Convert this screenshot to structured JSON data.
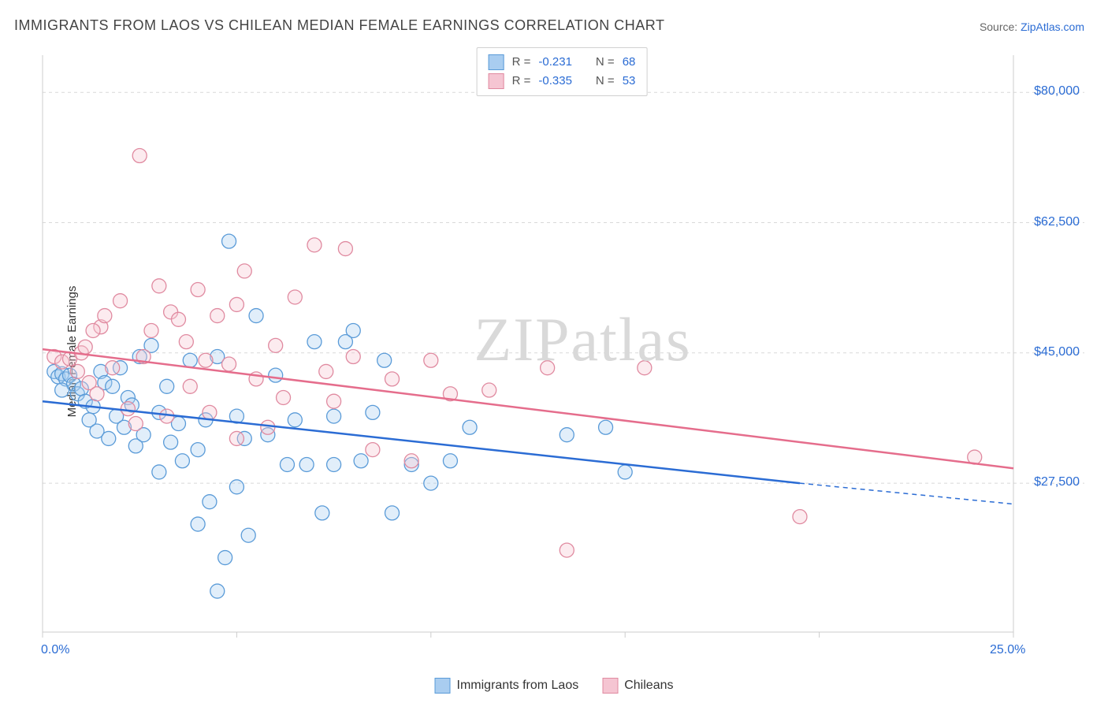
{
  "title": "IMMIGRANTS FROM LAOS VS CHILEAN MEDIAN FEMALE EARNINGS CORRELATION CHART",
  "source_label": "Source:",
  "source_name": "ZipAtlas.com",
  "y_axis_label": "Median Female Earnings",
  "watermark": {
    "zip": "ZIP",
    "atlas": "atlas"
  },
  "chart": {
    "type": "scatter",
    "xlim": [
      0,
      25
    ],
    "ylim": [
      7500,
      85000
    ],
    "x_ticks": [
      0,
      25
    ],
    "x_tick_labels": [
      "0.0%",
      "25.0%"
    ],
    "x_minor_ticks": [
      5,
      10,
      15,
      20
    ],
    "y_ticks": [
      27500,
      45000,
      62500,
      80000
    ],
    "y_tick_labels": [
      "$27,500",
      "$45,000",
      "$62,500",
      "$80,000"
    ],
    "y_grid": [
      27500,
      45000,
      62500,
      80000
    ],
    "grid_color": "#d8d8d8",
    "grid_dash": "4,4",
    "axis_color": "#cccccc",
    "background_color": "#ffffff",
    "marker_radius": 9,
    "marker_fill_opacity": 0.35,
    "marker_stroke_width": 1.3,
    "line_width": 2.5,
    "series": [
      {
        "name": "Immigrants from Laos",
        "color_stroke": "#5a9bd8",
        "color_fill": "#a9cdf0",
        "line_color": "#2b6cd4",
        "r_label": "R =",
        "r_value": "-0.231",
        "n_label": "N =",
        "n_value": "68",
        "regression": {
          "x1": 0,
          "y1": 38500,
          "x2": 19.5,
          "y2": 27500,
          "x2_ext": 25,
          "y2_ext": 24700
        },
        "points": [
          [
            0.3,
            42500
          ],
          [
            0.4,
            41800
          ],
          [
            0.5,
            42200
          ],
          [
            0.6,
            41500
          ],
          [
            0.7,
            42000
          ],
          [
            0.8,
            40800
          ],
          [
            0.5,
            40000
          ],
          [
            0.9,
            39500
          ],
          [
            1.0,
            40200
          ],
          [
            1.1,
            38500
          ],
          [
            1.3,
            37800
          ],
          [
            1.5,
            42500
          ],
          [
            1.2,
            36000
          ],
          [
            1.4,
            34500
          ],
          [
            1.6,
            41000
          ],
          [
            1.8,
            40500
          ],
          [
            2.0,
            43000
          ],
          [
            2.2,
            39000
          ],
          [
            1.7,
            33500
          ],
          [
            1.9,
            36500
          ],
          [
            2.1,
            35000
          ],
          [
            2.3,
            38000
          ],
          [
            2.5,
            44500
          ],
          [
            2.8,
            46000
          ],
          [
            2.4,
            32500
          ],
          [
            2.6,
            34000
          ],
          [
            3.0,
            37000
          ],
          [
            3.2,
            40500
          ],
          [
            3.5,
            35500
          ],
          [
            3.8,
            44000
          ],
          [
            3.0,
            29000
          ],
          [
            3.3,
            33000
          ],
          [
            3.6,
            30500
          ],
          [
            4.0,
            32000
          ],
          [
            4.2,
            36000
          ],
          [
            4.5,
            44500
          ],
          [
            4.0,
            22000
          ],
          [
            4.3,
            25000
          ],
          [
            4.8,
            60000
          ],
          [
            5.0,
            36500
          ],
          [
            5.2,
            33500
          ],
          [
            5.5,
            50000
          ],
          [
            4.5,
            13000
          ],
          [
            4.7,
            17500
          ],
          [
            5.8,
            34000
          ],
          [
            6.0,
            42000
          ],
          [
            6.3,
            30000
          ],
          [
            6.5,
            36000
          ],
          [
            5.0,
            27000
          ],
          [
            5.3,
            20500
          ],
          [
            7.0,
            46500
          ],
          [
            7.2,
            23500
          ],
          [
            7.5,
            36500
          ],
          [
            8.0,
            48000
          ],
          [
            7.5,
            30000
          ],
          [
            8.2,
            30500
          ],
          [
            8.5,
            37000
          ],
          [
            9.0,
            23500
          ],
          [
            9.5,
            30000
          ],
          [
            10.0,
            27500
          ],
          [
            10.5,
            30500
          ],
          [
            11.0,
            35000
          ],
          [
            13.5,
            34000
          ],
          [
            14.5,
            35000
          ],
          [
            15.0,
            29000
          ],
          [
            7.8,
            46500
          ],
          [
            8.8,
            44000
          ],
          [
            6.8,
            30000
          ]
        ]
      },
      {
        "name": "Chileans",
        "color_stroke": "#e08aa0",
        "color_fill": "#f5c5d2",
        "line_color": "#e56d8c",
        "r_label": "R =",
        "r_value": "-0.335",
        "n_label": "N =",
        "n_value": "53",
        "regression": {
          "x1": 0,
          "y1": 45500,
          "x2": 25,
          "y2": 29500
        },
        "points": [
          [
            0.3,
            44500
          ],
          [
            0.5,
            43800
          ],
          [
            0.7,
            44200
          ],
          [
            0.9,
            42500
          ],
          [
            1.0,
            45000
          ],
          [
            1.1,
            45800
          ],
          [
            1.2,
            41000
          ],
          [
            1.4,
            39500
          ],
          [
            1.5,
            48500
          ],
          [
            1.6,
            50000
          ],
          [
            1.8,
            43000
          ],
          [
            2.0,
            52000
          ],
          [
            2.2,
            37500
          ],
          [
            2.4,
            35500
          ],
          [
            2.5,
            71500
          ],
          [
            2.8,
            48000
          ],
          [
            3.0,
            54000
          ],
          [
            3.2,
            36500
          ],
          [
            3.3,
            50500
          ],
          [
            3.5,
            49500
          ],
          [
            3.8,
            40500
          ],
          [
            4.0,
            53500
          ],
          [
            4.2,
            44000
          ],
          [
            4.5,
            50000
          ],
          [
            4.3,
            37000
          ],
          [
            4.8,
            43500
          ],
          [
            5.0,
            51500
          ],
          [
            5.2,
            56000
          ],
          [
            5.5,
            41500
          ],
          [
            5.8,
            35000
          ],
          [
            5.0,
            33500
          ],
          [
            6.0,
            46000
          ],
          [
            6.2,
            39000
          ],
          [
            6.5,
            52500
          ],
          [
            7.0,
            59500
          ],
          [
            7.3,
            42500
          ],
          [
            7.5,
            38500
          ],
          [
            7.8,
            59000
          ],
          [
            8.0,
            44500
          ],
          [
            8.5,
            32000
          ],
          [
            9.0,
            41500
          ],
          [
            9.5,
            30500
          ],
          [
            10.0,
            44000
          ],
          [
            10.5,
            39500
          ],
          [
            11.5,
            40000
          ],
          [
            13.0,
            43000
          ],
          [
            13.5,
            18500
          ],
          [
            15.5,
            43000
          ],
          [
            19.5,
            23000
          ],
          [
            24.0,
            31000
          ],
          [
            1.3,
            48000
          ],
          [
            2.6,
            44500
          ],
          [
            3.7,
            46500
          ]
        ]
      }
    ],
    "legend_bottom": [
      {
        "label": "Immigrants from Laos",
        "stroke": "#5a9bd8",
        "fill": "#a9cdf0"
      },
      {
        "label": "Chileans",
        "stroke": "#e08aa0",
        "fill": "#f5c5d2"
      }
    ]
  }
}
